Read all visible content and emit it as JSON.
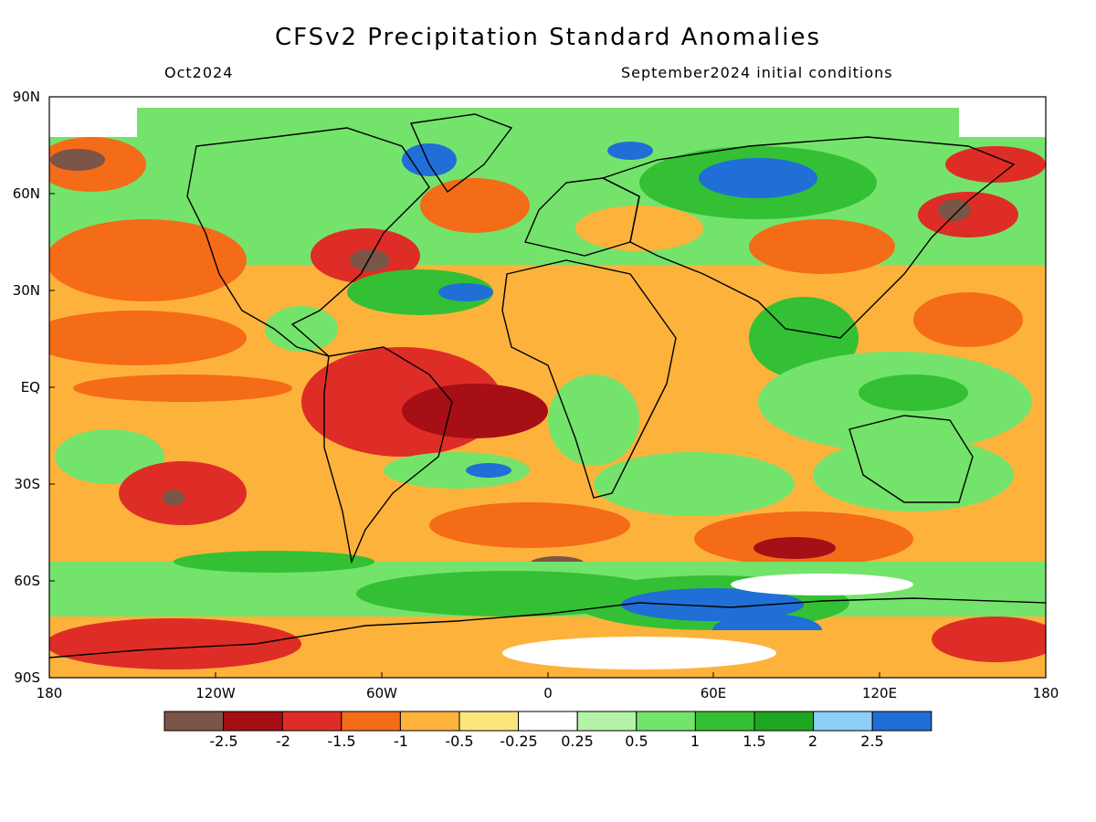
{
  "header": {
    "title": "CFSv2 Precipitation Standard Anomalies",
    "valid_month": "Oct2024",
    "init_conditions": "September2024 initial conditions"
  },
  "axes": {
    "lat_labels": [
      "90N",
      "60N",
      "30N",
      "EQ",
      "30S",
      "60S",
      "90S"
    ],
    "lon_labels": [
      "180",
      "120W",
      "60W",
      "0",
      "60E",
      "120E",
      "180"
    ]
  },
  "colorbar": {
    "colors": [
      "#7a5548",
      "#a50f15",
      "#de2d26",
      "#f46b18",
      "#fdb23c",
      "#fde57c",
      "#ffffff",
      "#b4f3a8",
      "#74e36c",
      "#34c034",
      "#1fa51f",
      "#8ccff8",
      "#1f6fd6"
    ],
    "labels": [
      "-2.5",
      "-2",
      "-1.5",
      "-1",
      "-0.5",
      "-0.25",
      "0.25",
      "0.5",
      "1",
      "1.5",
      "2",
      "2.5"
    ]
  }
}
